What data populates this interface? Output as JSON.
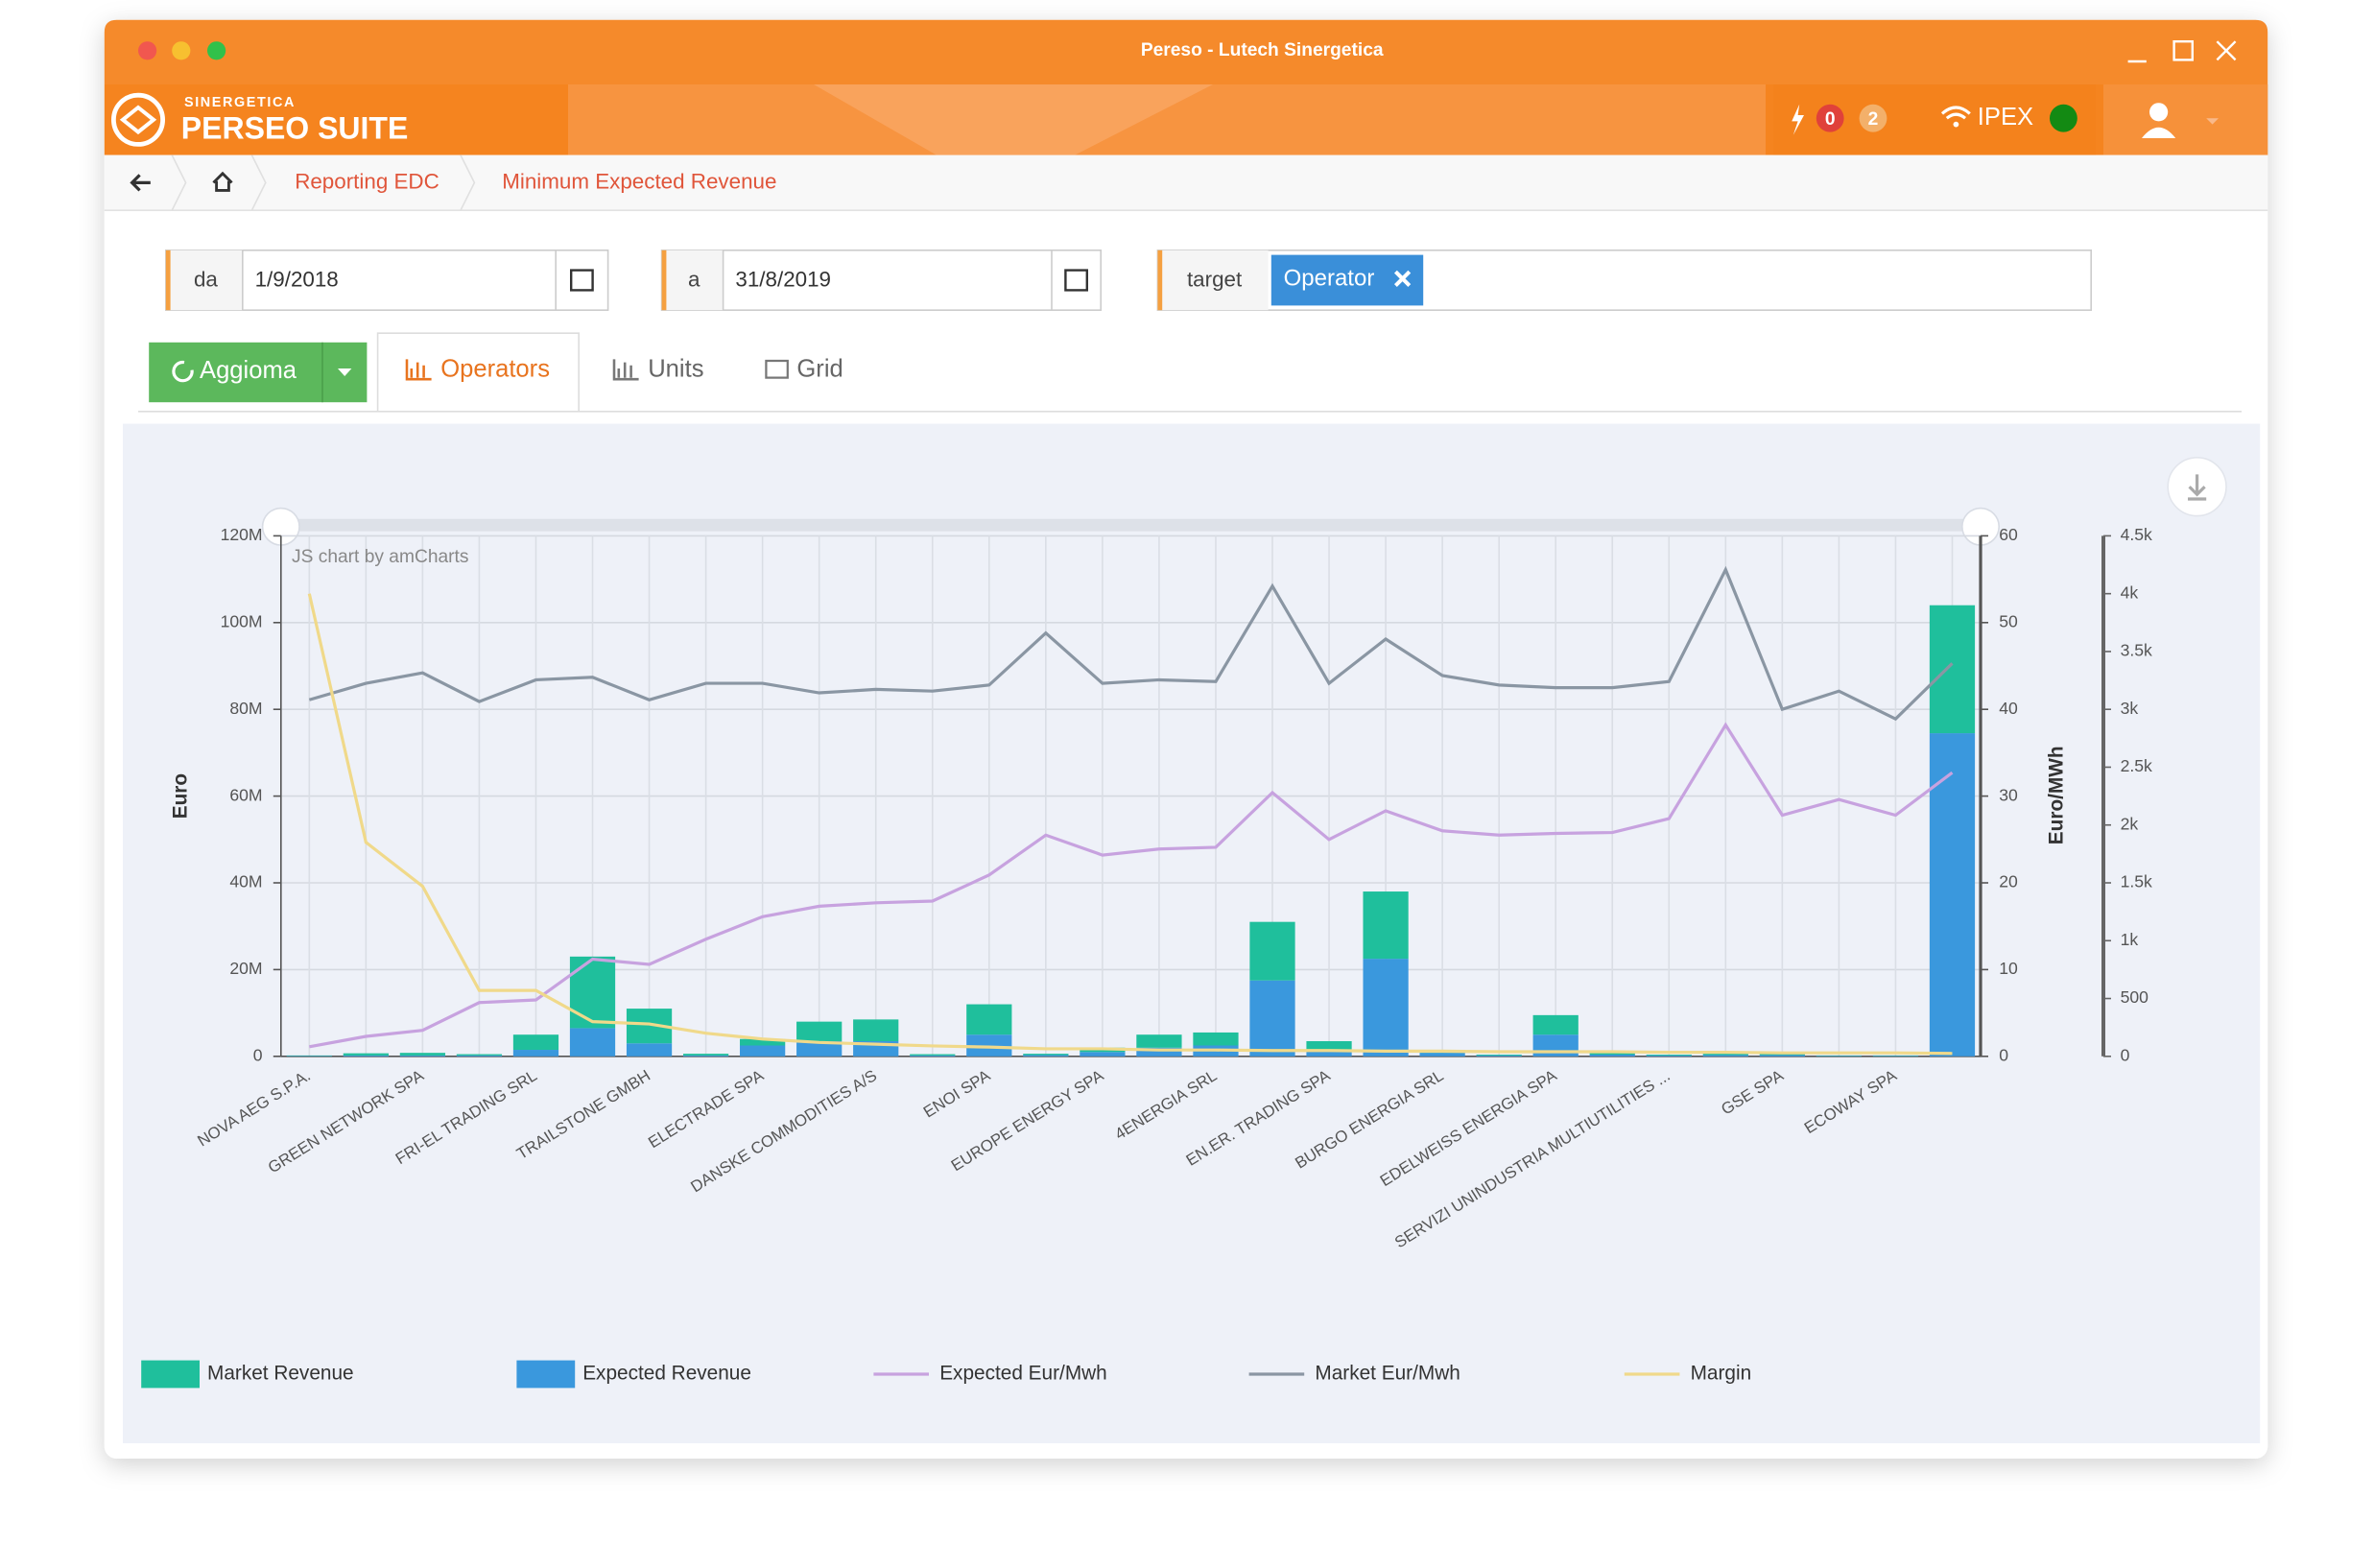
{
  "window": {
    "title": "Pereso - Lutech Sinergetica"
  },
  "header": {
    "brand_top": "SINERGETICA",
    "brand": "PERSEO SUITE",
    "alerts_red": "0",
    "alerts_orange": "2",
    "market": "IPEX"
  },
  "breadcrumb": [
    "Reporting EDC",
    "Minimum Expected Revenue"
  ],
  "filters": {
    "from_label": "da",
    "from": "1/9/2018",
    "to_label": "a",
    "to": "31/8/2019",
    "target_label": "target",
    "target_tag": "Operator"
  },
  "toolbar": {
    "button": "Aggioma",
    "tabs": [
      "Operators",
      "Units",
      "Grid"
    ]
  },
  "chart_data": {
    "type": "bar",
    "stacked": true,
    "credit": "JS chart by amCharts",
    "ylabel": "Euro",
    "y2label": "Euro/MWh",
    "categories": [
      "NOVA AEG S.P.A.",
      null,
      "GREEN NETWORK SPA",
      null,
      "FRI-EL TRADING SRL",
      null,
      "TRAILSTONE GMBH",
      null,
      "ELECTRADE SPA",
      null,
      "DANSKE COMMODITIES A/S",
      null,
      "ENOI SPA",
      null,
      "EUROPE ENERGY SPA",
      null,
      "4ENERGIA SRL",
      null,
      "EN.ER. TRADING SPA",
      null,
      "BURGO ENERGIA SRL",
      null,
      "EDELWEISS ENERGIA SPA",
      null,
      "SERVIZI UNINDUSTRIA MULTIUTILITIES ...",
      null,
      "GSE SPA",
      null,
      "ECOWAY SPA",
      null
    ],
    "series": [
      {
        "name": "Market Revenue",
        "type": "bar",
        "color": "#1fbf9c",
        "values": [
          100000,
          500000,
          600000,
          300000,
          3500000,
          16500000,
          8000000,
          400000,
          1500000,
          4500000,
          5000000,
          300000,
          7000000,
          300000,
          1000000,
          3000000,
          3000000,
          13500000,
          2000000,
          15500000,
          700000,
          200000,
          4500000,
          400000,
          200000,
          300000,
          300000,
          100000,
          100000,
          29500000
        ]
      },
      {
        "name": "Expected Revenue",
        "type": "bar",
        "color": "#3a98dd",
        "values": [
          100000,
          200000,
          200000,
          200000,
          1500000,
          6500000,
          3000000,
          200000,
          2500000,
          3500000,
          3500000,
          200000,
          5000000,
          300000,
          1000000,
          2000000,
          2500000,
          17500000,
          1500000,
          22500000,
          800000,
          200000,
          5000000,
          400000,
          200000,
          300000,
          300000,
          100000,
          100000,
          74500000
        ]
      },
      {
        "name": "Expected Eur/Mwh",
        "type": "line",
        "axis": "y2",
        "color": "#c7a2df",
        "values": [
          1.1,
          2.3,
          3,
          6.2,
          6.5,
          11.2,
          10.6,
          13.5,
          16.1,
          17.3,
          17.7,
          17.9,
          20.9,
          25.5,
          23.2,
          23.9,
          24.1,
          30.4,
          25,
          28.3,
          26,
          25.5,
          25.7,
          25.8,
          27.4,
          38.2,
          27.8,
          29.6,
          27.8,
          32.7
        ]
      },
      {
        "name": "Market Eur/Mwh",
        "type": "line",
        "axis": "y2",
        "color": "#8a96a3",
        "values": [
          41.1,
          43,
          44.2,
          40.9,
          43.4,
          43.7,
          41.1,
          43,
          43,
          41.9,
          42.3,
          42.1,
          42.8,
          48.8,
          43,
          43.4,
          43.2,
          54.2,
          43,
          48.1,
          43.9,
          42.8,
          42.5,
          42.5,
          43.2,
          56.1,
          40,
          42.1,
          38.9,
          45.3
        ]
      },
      {
        "name": "Margin",
        "type": "line",
        "axis": "y3",
        "color": "#f0d98a",
        "values": [
          4000,
          1850,
          1470,
          570,
          570,
          300,
          280,
          200,
          150,
          120,
          105,
          90,
          80,
          65,
          65,
          55,
          55,
          50,
          50,
          45,
          45,
          40,
          40,
          40,
          35,
          35,
          30,
          30,
          30,
          25
        ]
      }
    ],
    "ylim": [
      0,
      120000000
    ],
    "yticks": [
      0,
      {
        "value": 20000000,
        "label": "20M"
      },
      {
        "value": 40000000,
        "label": "40M"
      },
      {
        "value": 60000000,
        "label": "60M"
      },
      {
        "value": 80000000,
        "label": "80M"
      },
      {
        "value": 100000000,
        "label": "100M"
      },
      {
        "value": 120000000,
        "label": "120M"
      }
    ],
    "y2lim": [
      0,
      60
    ],
    "y2ticks": [
      0,
      10,
      20,
      30,
      40,
      50,
      60
    ],
    "y3lim": [
      0,
      4500
    ],
    "y3ticks": [
      0,
      500,
      {
        "value": 1000,
        "label": "1k"
      },
      {
        "value": 1500,
        "label": "1.5k"
      },
      {
        "value": 2000,
        "label": "2k"
      },
      {
        "value": 2500,
        "label": "2.5k"
      },
      {
        "value": 3000,
        "label": "3k"
      },
      {
        "value": 3500,
        "label": "3.5k"
      },
      {
        "value": 4000,
        "label": "4k"
      },
      {
        "value": 4500,
        "label": "4.5k"
      }
    ],
    "grid": true,
    "legend": "bottom"
  }
}
